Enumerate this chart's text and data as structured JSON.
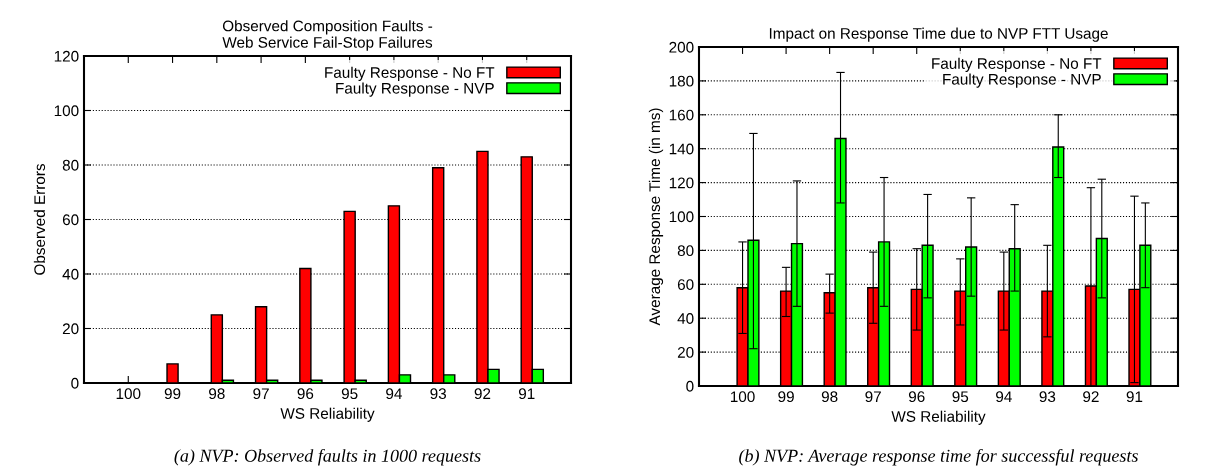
{
  "chart_data": [
    {
      "type": "bar",
      "title": "Observed Composition Faults -\nWeb Service Fail-Stop Failures",
      "xlabel": "WS Reliability",
      "ylabel": "Observed Errors",
      "categories": [
        "100",
        "99",
        "98",
        "97",
        "96",
        "95",
        "94",
        "93",
        "92",
        "91"
      ],
      "series": [
        {
          "name": "Faulty Response - No FT",
          "color": "#ff0000",
          "values": [
            0,
            7,
            25,
            28,
            42,
            63,
            65,
            79,
            85,
            83
          ]
        },
        {
          "name": "Faulty Response - NVP",
          "color": "#00ff00",
          "values": [
            0,
            0,
            1,
            1,
            1,
            1,
            3,
            3,
            5,
            5
          ]
        }
      ],
      "ylim": [
        0,
        120
      ],
      "yticks": [
        0,
        20,
        40,
        60,
        80,
        100,
        120
      ],
      "grid": "y",
      "legend": "top right",
      "annotations": [
        "(a) NVP: Observed faults in 1000 requests"
      ]
    },
    {
      "type": "bar",
      "title": "Impact on Response Time due to NVP FTT Usage",
      "xlabel": "WS Reliability",
      "ylabel": "Average Response Time (in ms)",
      "categories": [
        "100",
        "99",
        "98",
        "97",
        "96",
        "95",
        "94",
        "93",
        "92",
        "91"
      ],
      "series": [
        {
          "name": "Faulty Response - No FT",
          "color": "#ff0000",
          "values": [
            58,
            56,
            55,
            58,
            57,
            56,
            56,
            56,
            59,
            57
          ],
          "errors": [
            [
              31,
              85
            ],
            [
              41,
              70
            ],
            [
              43,
              66
            ],
            [
              37,
              79
            ],
            [
              33,
              81
            ],
            [
              36,
              75
            ],
            [
              33,
              79
            ],
            [
              29,
              83
            ],
            [
              0,
              117
            ],
            [
              2,
              112
            ]
          ]
        },
        {
          "name": "Faulty Response - NVP",
          "color": "#00ff00",
          "values": [
            86,
            84,
            146,
            85,
            83,
            82,
            81,
            141,
            87,
            83
          ],
          "errors": [
            [
              22,
              149
            ],
            [
              47,
              121
            ],
            [
              108,
              185
            ],
            [
              47,
              123
            ],
            [
              52,
              113
            ],
            [
              53,
              111
            ],
            [
              56,
              107
            ],
            [
              123,
              160
            ],
            [
              52,
              122
            ],
            [
              58,
              108
            ]
          ]
        }
      ],
      "ylim": [
        0,
        200
      ],
      "yticks": [
        0,
        20,
        40,
        60,
        80,
        100,
        120,
        140,
        160,
        180,
        200
      ],
      "grid": "y",
      "legend": "top right",
      "annotations": [
        "(b) NVP: Average response time for successful requests"
      ]
    }
  ]
}
